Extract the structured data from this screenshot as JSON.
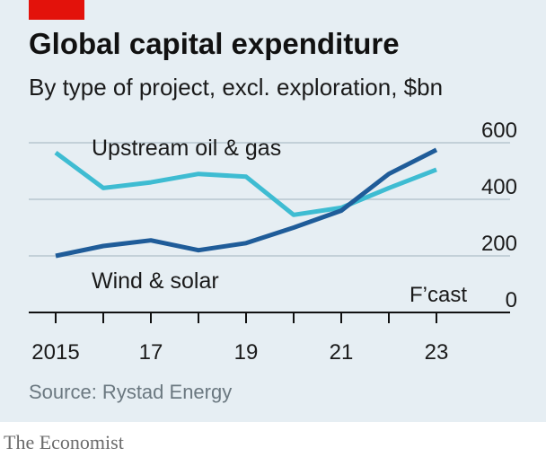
{
  "header": {
    "title": "Global capital expenditure",
    "subtitle": "By type of project, excl. exploration, $bn"
  },
  "footer": {
    "source": "Source: Rystad Energy",
    "brand": "The Economist"
  },
  "colors": {
    "background": "#e6eef3",
    "accent": "#e3120b",
    "series_upstream": "#3ebcd2",
    "series_wind_solar": "#1f5c99",
    "grid": "#b7c6cf",
    "axis": "#111111"
  },
  "chart_data": {
    "type": "line",
    "x": [
      2015,
      2016,
      2017,
      2018,
      2019,
      2020,
      2021,
      2022,
      2023
    ],
    "xtick_labels": [
      "2015",
      "17",
      "19",
      "21",
      "23"
    ],
    "xtick_values": [
      2015,
      2017,
      2019,
      2021,
      2023
    ],
    "xlim": [
      2015,
      2023
    ],
    "ylim": [
      0,
      600
    ],
    "yticks": [
      0,
      200,
      400,
      600
    ],
    "ytick_labels": [
      "0",
      "200",
      "400",
      "600"
    ],
    "yaxis_position": "right",
    "grid": true,
    "forecast_label": "F’cast",
    "forecast_from": 2023,
    "series": [
      {
        "name": "Upstream oil & gas",
        "color": "#3ebcd2",
        "values": [
          565,
          440,
          460,
          490,
          480,
          345,
          370,
          440,
          505
        ]
      },
      {
        "name": "Wind & solar",
        "color": "#1f5c99",
        "values": [
          200,
          235,
          255,
          220,
          245,
          300,
          360,
          490,
          575
        ]
      }
    ]
  }
}
